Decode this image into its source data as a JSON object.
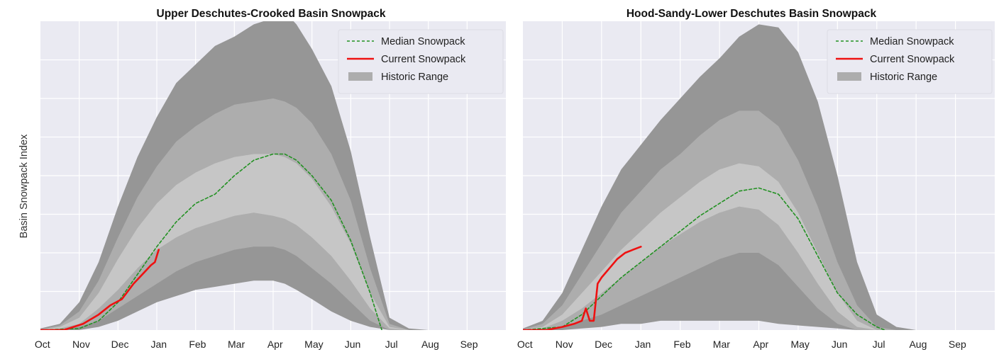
{
  "figure": {
    "ylabel": "Basin Snowpack Index",
    "colors": {
      "plot_bg": "#eaeaf2",
      "grid": "#ffffff",
      "band_outer": "#969696",
      "band_mid": "#adadad",
      "band_inner": "#c6c6c6",
      "median": "#229122",
      "current": "#ee1111"
    }
  },
  "chart_data": [
    {
      "type": "area",
      "title": "Upper Deschutes-Crooked Basin Snowpack",
      "xlabel": "",
      "ylabel": "Basin Snowpack Index",
      "months": [
        "Oct",
        "Nov",
        "Dec",
        "Jan",
        "Feb",
        "Mar",
        "Apr",
        "May",
        "Jun",
        "Jul",
        "Aug",
        "Sep"
      ],
      "grid": true,
      "ylim": [
        0,
        100
      ],
      "legend": {
        "placement": "top-right",
        "entries": [
          "Median Snowpack",
          "Current Snowpack",
          "Historic Range"
        ]
      },
      "x": [
        0,
        0.5,
        1,
        1.5,
        2,
        2.5,
        3,
        3.5,
        4,
        4.5,
        5,
        5.5,
        6,
        6.3,
        6.6,
        7,
        7.5,
        8,
        8.5,
        9,
        9.5,
        10,
        11,
        11.9
      ],
      "max": [
        0.5,
        2,
        9,
        22,
        40,
        56,
        69,
        80,
        86,
        92,
        95,
        99,
        101,
        103,
        99,
        91,
        79,
        58,
        30,
        4,
        0.5,
        0,
        0,
        0
      ],
      "upper_mid": [
        0.2,
        1.5,
        6,
        16,
        30,
        43,
        53,
        61,
        66,
        70,
        73,
        74,
        75,
        74,
        72,
        67,
        57,
        42,
        20,
        2,
        0,
        0,
        0,
        0
      ],
      "upper_in": [
        0.1,
        1,
        4,
        12,
        23,
        33,
        41,
        47,
        51,
        54,
        56,
        57,
        57,
        56,
        54,
        49,
        40,
        28,
        12,
        1,
        0,
        0,
        0,
        0
      ],
      "lower_in": [
        0,
        0.5,
        2,
        7,
        13,
        20,
        26,
        30,
        33,
        35,
        37,
        38,
        37,
        36,
        34,
        30,
        24,
        16,
        7,
        0.5,
        0,
        0,
        0,
        0
      ],
      "lower_mid": [
        0,
        0.2,
        1,
        3,
        7,
        11,
        15,
        19,
        22,
        24,
        26,
        27,
        27,
        26,
        24,
        20,
        15,
        9,
        3,
        0,
        0,
        0,
        0,
        0
      ],
      "min": [
        0,
        0,
        0,
        1,
        3,
        6,
        9,
        11,
        13,
        14,
        15,
        16,
        16,
        15,
        13,
        10,
        6,
        3,
        1,
        0,
        0,
        0,
        0,
        0
      ],
      "median": {
        "x": [
          0,
          1,
          1.5,
          2,
          2.5,
          3,
          3.5,
          4,
          4.5,
          5,
          5.5,
          6,
          6.3,
          6.6,
          7,
          7.5,
          8,
          8.5,
          8.8
        ],
        "values": [
          0,
          0.5,
          3,
          9,
          18,
          27,
          35,
          41,
          44,
          50,
          55,
          57,
          57,
          55,
          50,
          42,
          29,
          12,
          0
        ]
      },
      "current": {
        "x": [
          0,
          0.6,
          1.1,
          1.5,
          1.8,
          2.1,
          2.4,
          2.7,
          2.85,
          2.95,
          3.05
        ],
        "values": [
          0,
          0,
          2,
          5,
          8,
          10,
          15,
          19,
          21,
          22,
          26
        ]
      }
    },
    {
      "type": "area",
      "title": "Hood-Sandy-Lower Deschutes Basin Snowpack",
      "xlabel": "",
      "ylabel": "",
      "months": [
        "Oct",
        "Nov",
        "Dec",
        "Jan",
        "Feb",
        "Mar",
        "Apr",
        "May",
        "Jun",
        "Jul",
        "Aug",
        "Sep"
      ],
      "grid": true,
      "ylim": [
        0,
        100
      ],
      "legend": {
        "placement": "top-right",
        "entries": [
          "Median Snowpack",
          "Current Snowpack",
          "Historic Range"
        ]
      },
      "x": [
        0,
        0.5,
        1,
        1.5,
        2,
        2.5,
        3,
        3.5,
        4,
        4.5,
        5,
        5.5,
        6,
        6.5,
        7,
        7.5,
        8,
        8.5,
        9,
        9.5,
        10,
        11,
        11.9
      ],
      "max": [
        0.5,
        3,
        12,
        26,
        40,
        52,
        60,
        68,
        75,
        82,
        88,
        95,
        99,
        98,
        90,
        74,
        50,
        22,
        5,
        1,
        0,
        0,
        0
      ],
      "upper_mid": [
        0.2,
        2,
        8,
        18,
        28,
        38,
        45,
        52,
        57,
        63,
        68,
        71,
        71,
        66,
        55,
        40,
        22,
        8,
        1,
        0,
        0,
        0,
        0
      ],
      "upper_in": [
        0.1,
        1,
        5,
        12,
        19,
        26,
        32,
        38,
        43,
        48,
        52,
        54,
        53,
        48,
        38,
        25,
        12,
        3,
        0,
        0,
        0,
        0,
        0
      ],
      "lower_in": [
        0,
        0.5,
        3,
        7,
        12,
        17,
        22,
        27,
        31,
        35,
        38,
        40,
        39,
        34,
        25,
        15,
        6,
        1,
        0,
        0,
        0,
        0,
        0
      ],
      "lower_mid": [
        0,
        0.2,
        1,
        3,
        5,
        8,
        11,
        14,
        17,
        20,
        23,
        25,
        25,
        21,
        14,
        7,
        2,
        0,
        0,
        0,
        0,
        0,
        0
      ],
      "min": [
        0,
        0,
        0,
        0.5,
        1,
        2,
        2,
        3,
        3,
        3,
        3,
        3,
        3,
        2,
        1.5,
        1,
        0.5,
        0,
        0,
        0,
        0,
        0,
        0
      ],
      "median": {
        "x": [
          0,
          1,
          1.5,
          2,
          2.5,
          3,
          3.5,
          4,
          4.5,
          5,
          5.5,
          6,
          6.5,
          7,
          7.5,
          8,
          8.5,
          9,
          9.2
        ],
        "values": [
          0,
          1,
          5,
          11,
          17,
          22,
          27,
          32,
          37,
          41,
          45,
          46,
          44,
          36,
          24,
          12,
          5,
          1,
          0
        ]
      },
      "current": {
        "x": [
          0,
          0.6,
          1.0,
          1.3,
          1.5,
          1.6,
          1.7,
          1.8,
          1.9,
          2.0,
          2.2,
          2.4,
          2.6,
          2.8,
          3.0
        ],
        "values": [
          0,
          0,
          1,
          2,
          3,
          7,
          3,
          3,
          15,
          17,
          20,
          23,
          25,
          26,
          27
        ]
      }
    }
  ]
}
